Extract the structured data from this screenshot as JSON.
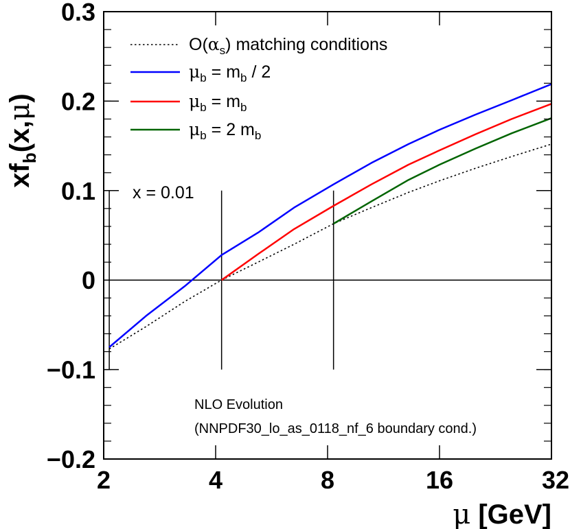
{
  "chart_data": {
    "type": "line",
    "x_scale": "log2",
    "xlim": [
      2,
      32
    ],
    "ylim": [
      -0.2,
      0.3
    ],
    "x_ticks": [
      2,
      4,
      8,
      16,
      32
    ],
    "x_tick_labels": [
      "2",
      "4",
      "8",
      "16",
      "32"
    ],
    "y_ticks": [
      -0.2,
      -0.1,
      0,
      0.1,
      0.2,
      0.3
    ],
    "y_tick_labels": [
      "−0.2",
      "−0.1",
      "0",
      "0.1",
      "0.2",
      "0.3"
    ],
    "xlabel": {
      "main": "μ",
      "rest": " [GeV]"
    },
    "ylabel": {
      "pre": "xf",
      "sub": "b",
      "mid": "(x,",
      "greek": "μ",
      "post": ")"
    },
    "kinematics_label": "x = 0.01",
    "annotations": [
      "NLO Evolution",
      "(NNPDF30_lo_as_0118_nf_6 boundary cond.)"
    ],
    "zero_line": 0,
    "threshold_markers": [
      {
        "x": 2.07,
        "ymin": -0.1,
        "ymax": 0.1
      },
      {
        "x": 4.15,
        "ymin": -0.1,
        "ymax": 0.1
      },
      {
        "x": 8.3,
        "ymin": -0.1,
        "ymax": 0.1
      }
    ],
    "series": [
      {
        "legend": {
          "pre": "O(",
          "greek": "α",
          "sub": "s",
          "post": ") matching conditions"
        },
        "color": "#000000",
        "style": "dotted",
        "x": [
          2.07,
          2.6,
          3.3,
          4.15,
          5.2,
          6.5,
          8.3,
          10.5,
          13.2,
          16,
          20,
          25,
          32
        ],
        "y": [
          -0.077,
          -0.052,
          -0.024,
          0.0,
          0.02,
          0.04,
          0.063,
          0.081,
          0.098,
          0.111,
          0.125,
          0.138,
          0.152
        ]
      },
      {
        "legend": {
          "pre": "",
          "greek": "μ",
          "sub": "b",
          "post": " = m",
          "sub2": "b",
          "post2": " / 2"
        },
        "color": "#0000ff",
        "style": "solid",
        "x": [
          2.07,
          2.6,
          3.3,
          4.15,
          5.2,
          6.5,
          8.3,
          10.5,
          13.2,
          16,
          20,
          25,
          32
        ],
        "y": [
          -0.075,
          -0.04,
          -0.007,
          0.028,
          0.053,
          0.081,
          0.107,
          0.131,
          0.152,
          0.168,
          0.185,
          0.201,
          0.219
        ]
      },
      {
        "legend": {
          "pre": "",
          "greek": "μ",
          "sub": "b",
          "post": " = m",
          "sub2": "b",
          "post2": ""
        },
        "color": "#ff0000",
        "style": "solid",
        "x": [
          4.15,
          5.2,
          6.5,
          8.3,
          10.5,
          13.2,
          16,
          20,
          25,
          32
        ],
        "y": [
          0.0,
          0.029,
          0.057,
          0.083,
          0.107,
          0.129,
          0.145,
          0.163,
          0.18,
          0.197
        ]
      },
      {
        "legend": {
          "pre": "",
          "greek": "μ",
          "sub": "b",
          "post": " = 2 m",
          "sub2": "b",
          "post2": ""
        },
        "color": "#006400",
        "style": "solid",
        "x": [
          8.3,
          10.5,
          13.2,
          16,
          20,
          25,
          32
        ],
        "y": [
          0.063,
          0.088,
          0.112,
          0.129,
          0.147,
          0.164,
          0.181
        ]
      }
    ],
    "grid": false,
    "legend_position": "top-left"
  }
}
